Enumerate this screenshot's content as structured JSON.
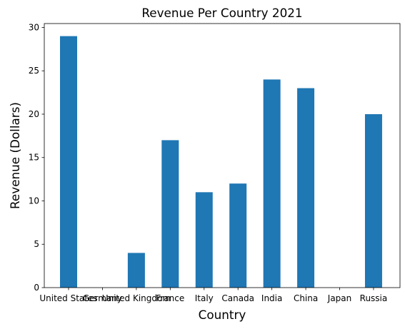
{
  "chart_data": {
    "type": "bar",
    "title": "Revenue Per Country 2021",
    "xlabel": "Country",
    "ylabel": "Revenue (Dollars)",
    "categories": [
      "United States",
      "Germany",
      "United Kingdom",
      "France",
      "Italy",
      "Canada",
      "India",
      "China",
      "Japan",
      "Russia"
    ],
    "values": [
      29,
      0,
      4,
      17,
      11,
      12,
      24,
      23,
      0,
      20
    ],
    "ylim": [
      0,
      30.45
    ],
    "yticks": [
      0,
      5,
      10,
      15,
      20,
      25,
      30
    ],
    "bar_color": "#1f77b4",
    "grid": false,
    "legend": "none"
  }
}
